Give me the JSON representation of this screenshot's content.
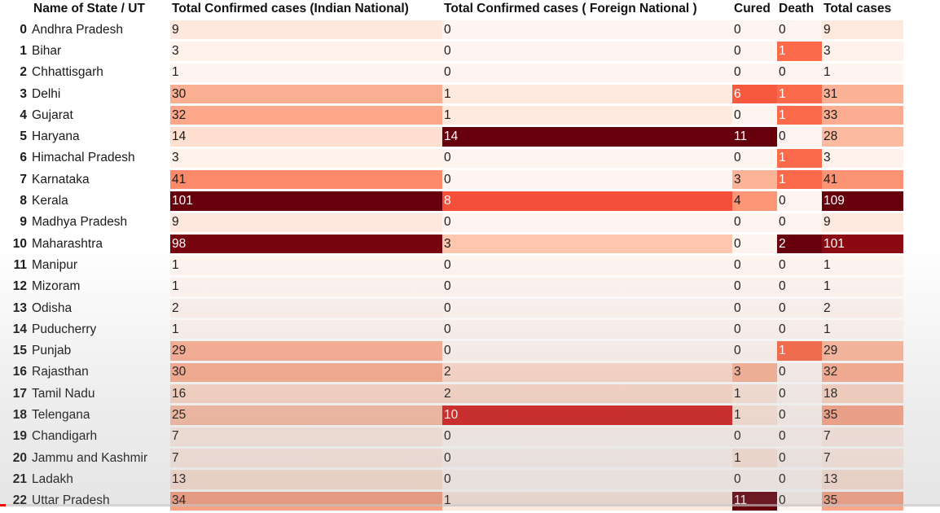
{
  "table": {
    "headers": [
      "",
      "Name of State / UT",
      "Total Confirmed cases (Indian National)",
      "Total Confirmed cases ( Foreign National )",
      "Cured",
      "Death",
      "Total cases"
    ],
    "rows": [
      [
        "0",
        "Andhra Pradesh",
        "9",
        "0",
        "0",
        "0",
        "9"
      ],
      [
        "1",
        "Bihar",
        "3",
        "0",
        "0",
        "1",
        "3"
      ],
      [
        "2",
        "Chhattisgarh",
        "1",
        "0",
        "0",
        "0",
        "1"
      ],
      [
        "3",
        "Delhi",
        "30",
        "1",
        "6",
        "1",
        "31"
      ],
      [
        "4",
        "Gujarat",
        "32",
        "1",
        "0",
        "1",
        "33"
      ],
      [
        "5",
        "Haryana",
        "14",
        "14",
        "11",
        "0",
        "28"
      ],
      [
        "6",
        "Himachal Pradesh",
        "3",
        "0",
        "0",
        "1",
        "3"
      ],
      [
        "7",
        "Karnataka",
        "41",
        "0",
        "3",
        "1",
        "41"
      ],
      [
        "8",
        "Kerala",
        "101",
        "8",
        "4",
        "0",
        "109"
      ],
      [
        "9",
        "Madhya Pradesh",
        "9",
        "0",
        "0",
        "0",
        "9"
      ],
      [
        "10",
        "Maharashtra",
        "98",
        "3",
        "0",
        "2",
        "101"
      ],
      [
        "11",
        "Manipur",
        "1",
        "0",
        "0",
        "0",
        "1"
      ],
      [
        "12",
        "Mizoram",
        "1",
        "0",
        "0",
        "0",
        "1"
      ],
      [
        "13",
        "Odisha",
        "2",
        "0",
        "0",
        "0",
        "2"
      ],
      [
        "14",
        "Puducherry",
        "1",
        "0",
        "0",
        "0",
        "1"
      ],
      [
        "15",
        "Punjab",
        "29",
        "0",
        "0",
        "1",
        "29"
      ],
      [
        "16",
        "Rajasthan",
        "30",
        "2",
        "3",
        "0",
        "32"
      ],
      [
        "17",
        "Tamil Nadu",
        "16",
        "2",
        "1",
        "0",
        "18"
      ],
      [
        "18",
        "Telengana",
        "25",
        "10",
        "1",
        "0",
        "35"
      ],
      [
        "19",
        "Chandigarh",
        "7",
        "0",
        "0",
        "0",
        "7"
      ],
      [
        "20",
        "Jammu and Kashmir",
        "7",
        "0",
        "1",
        "0",
        "7"
      ],
      [
        "21",
        "Ladakh",
        "13",
        "0",
        "0",
        "0",
        "13"
      ],
      [
        "22",
        "Uttar Pradesh",
        "34",
        "1",
        "11",
        "0",
        "35"
      ]
    ]
  },
  "style": {
    "gradient_low": "#fff5f0",
    "gradient_high": "#67000d",
    "progress_color": "#ff0000"
  }
}
